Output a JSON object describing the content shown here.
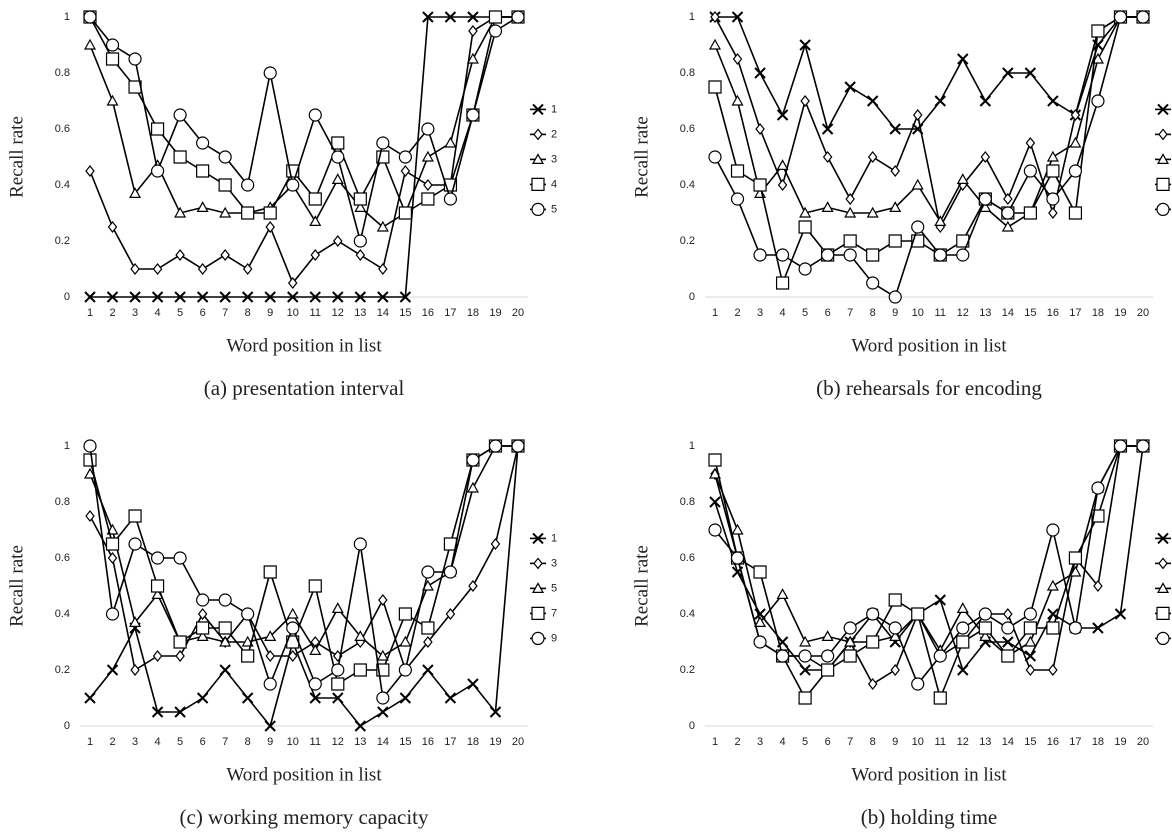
{
  "chart_data": [
    {
      "type": "line",
      "title": "(a) presentation interval",
      "xlabel": "Word position in list",
      "ylabel": "Recall rate",
      "x": [
        1,
        2,
        3,
        4,
        5,
        6,
        7,
        8,
        9,
        10,
        11,
        12,
        13,
        14,
        15,
        16,
        17,
        18,
        19,
        20
      ],
      "ylim": [
        0,
        1
      ],
      "yticks": [
        0,
        0.2,
        0.4,
        0.6,
        0.8,
        1
      ],
      "series": [
        {
          "name": "1",
          "marker": "x",
          "color": "#000000",
          "values": [
            0,
            0,
            0,
            0,
            0,
            0,
            0,
            0,
            0,
            0,
            0,
            0,
            0,
            0,
            0,
            1,
            1,
            1,
            1,
            1
          ]
        },
        {
          "name": "2",
          "marker": "diamond",
          "color": "#000000",
          "values": [
            0.45,
            0.25,
            0.1,
            0.1,
            0.15,
            0.1,
            0.15,
            0.1,
            0.25,
            0.05,
            0.15,
            0.2,
            0.15,
            0.1,
            0.45,
            0.4,
            0.4,
            0.95,
            1,
            1
          ]
        },
        {
          "name": "3",
          "marker": "triangle",
          "color": "#000000",
          "values": [
            0.9,
            0.7,
            0.37,
            0.47,
            0.3,
            0.32,
            0.3,
            0.3,
            0.32,
            0.4,
            0.27,
            0.42,
            0.32,
            0.25,
            0.3,
            0.5,
            0.55,
            0.85,
            1,
            1
          ]
        },
        {
          "name": "4",
          "marker": "square",
          "color": "#000000",
          "values": [
            1,
            0.85,
            0.75,
            0.6,
            0.5,
            0.45,
            0.4,
            0.3,
            0.3,
            0.45,
            0.35,
            0.55,
            0.35,
            0.5,
            0.3,
            0.35,
            0.4,
            0.65,
            1,
            1
          ]
        },
        {
          "name": "5",
          "marker": "circle",
          "color": "#000000",
          "values": [
            1,
            0.9,
            0.85,
            0.45,
            0.65,
            0.55,
            0.5,
            0.4,
            0.8,
            0.4,
            0.65,
            0.5,
            0.2,
            0.55,
            0.5,
            0.6,
            0.35,
            0.65,
            0.95,
            1
          ]
        }
      ]
    },
    {
      "type": "line",
      "title": "(b) rehearsals for encoding",
      "xlabel": "Word position in list",
      "ylabel": "Recall rate",
      "x": [
        1,
        2,
        3,
        4,
        5,
        6,
        7,
        8,
        9,
        10,
        11,
        12,
        13,
        14,
        15,
        16,
        17,
        18,
        19,
        20
      ],
      "ylim": [
        0,
        1
      ],
      "yticks": [
        0,
        0.2,
        0.4,
        0.6,
        0.8,
        1
      ],
      "series": [
        {
          "marker": "x",
          "color": "#000000",
          "values": [
            1,
            1,
            0.8,
            0.65,
            0.9,
            0.6,
            0.75,
            0.7,
            0.6,
            0.6,
            0.7,
            0.85,
            0.7,
            0.8,
            0.8,
            0.7,
            0.65,
            0.9,
            1,
            1
          ]
        },
        {
          "marker": "diamond",
          "color": "#000000",
          "values": [
            1,
            0.85,
            0.6,
            0.4,
            0.7,
            0.5,
            0.35,
            0.5,
            0.45,
            0.65,
            0.25,
            0.4,
            0.5,
            0.35,
            0.55,
            0.3,
            0.65,
            0.95,
            1,
            1
          ]
        },
        {
          "marker": "triangle",
          "color": "#000000",
          "values": [
            0.9,
            0.7,
            0.37,
            0.47,
            0.3,
            0.32,
            0.3,
            0.3,
            0.32,
            0.4,
            0.27,
            0.42,
            0.32,
            0.25,
            0.3,
            0.5,
            0.55,
            0.85,
            1,
            1
          ]
        },
        {
          "marker": "square",
          "color": "#000000",
          "values": [
            0.75,
            0.45,
            0.4,
            0.05,
            0.25,
            0.15,
            0.2,
            0.15,
            0.2,
            0.2,
            0.15,
            0.2,
            0.35,
            0.3,
            0.3,
            0.45,
            0.3,
            0.95,
            1,
            1
          ]
        },
        {
          "marker": "circle",
          "color": "#000000",
          "values": [
            0.5,
            0.35,
            0.15,
            0.15,
            0.1,
            0.15,
            0.15,
            0.05,
            0,
            0.25,
            0.15,
            0.15,
            0.35,
            0.3,
            0.45,
            0.35,
            0.45,
            0.7,
            1,
            1
          ]
        }
      ]
    },
    {
      "type": "line",
      "title": "(c) working memory capacity",
      "xlabel": "Word position in list",
      "ylabel": "Recall rate",
      "x": [
        1,
        2,
        3,
        4,
        5,
        6,
        7,
        8,
        9,
        10,
        11,
        12,
        13,
        14,
        15,
        16,
        17,
        18,
        19,
        20
      ],
      "ylim": [
        0,
        1
      ],
      "yticks": [
        0,
        0.2,
        0.4,
        0.6,
        0.8,
        1
      ],
      "series": [
        {
          "name": "1",
          "marker": "x",
          "color": "#000000",
          "values": [
            0.1,
            0.2,
            0.35,
            0.05,
            0.05,
            0.1,
            0.2,
            0.1,
            0,
            0.3,
            0.1,
            0.1,
            0,
            0.05,
            0.1,
            0.2,
            0.1,
            0.15,
            0.05,
            1
          ]
        },
        {
          "name": "3",
          "marker": "diamond",
          "color": "#000000",
          "values": [
            0.75,
            0.6,
            0.2,
            0.25,
            0.25,
            0.4,
            0.3,
            0.4,
            0.25,
            0.25,
            0.3,
            0.25,
            0.3,
            0.45,
            0.2,
            0.3,
            0.4,
            0.5,
            0.65,
            1
          ]
        },
        {
          "name": "5",
          "marker": "triangle",
          "color": "#000000",
          "values": [
            0.9,
            0.7,
            0.37,
            0.47,
            0.3,
            0.32,
            0.3,
            0.3,
            0.32,
            0.4,
            0.27,
            0.42,
            0.32,
            0.25,
            0.3,
            0.5,
            0.55,
            0.85,
            1,
            1
          ]
        },
        {
          "name": "7",
          "marker": "square",
          "color": "#000000",
          "values": [
            0.95,
            0.65,
            0.75,
            0.5,
            0.3,
            0.35,
            0.35,
            0.25,
            0.55,
            0.3,
            0.5,
            0.15,
            0.2,
            0.2,
            0.4,
            0.35,
            0.65,
            0.95,
            1,
            1
          ]
        },
        {
          "name": "9",
          "marker": "circle",
          "color": "#000000",
          "values": [
            1,
            0.4,
            0.65,
            0.6,
            0.6,
            0.45,
            0.45,
            0.4,
            0.15,
            0.35,
            0.15,
            0.2,
            0.65,
            0.1,
            0.2,
            0.55,
            0.55,
            0.95,
            1,
            1
          ]
        }
      ]
    },
    {
      "type": "line",
      "title": "(b) holding time",
      "xlabel": "Word position in list",
      "ylabel": "Recall rate",
      "x": [
        1,
        2,
        3,
        4,
        5,
        6,
        7,
        8,
        9,
        10,
        11,
        12,
        13,
        14,
        15,
        16,
        17,
        18,
        19,
        20
      ],
      "ylim": [
        0,
        1
      ],
      "yticks": [
        0,
        0.2,
        0.4,
        0.6,
        0.8,
        1
      ],
      "series": [
        {
          "marker": "x",
          "color": "#000000",
          "values": [
            0.8,
            0.55,
            0.4,
            0.3,
            0.2,
            0.2,
            0.3,
            0.4,
            0.3,
            0.4,
            0.45,
            0.2,
            0.3,
            0.3,
            0.25,
            0.4,
            0.35,
            0.35,
            0.4,
            1
          ]
        },
        {
          "marker": "diamond",
          "color": "#000000",
          "values": [
            0.9,
            0.6,
            0.3,
            0.25,
            0.25,
            0.2,
            0.3,
            0.15,
            0.2,
            0.4,
            0.25,
            0.3,
            0.4,
            0.4,
            0.2,
            0.2,
            0.6,
            0.5,
            1,
            1
          ]
        },
        {
          "marker": "triangle",
          "color": "#000000",
          "values": [
            0.9,
            0.7,
            0.37,
            0.47,
            0.3,
            0.32,
            0.3,
            0.3,
            0.32,
            0.4,
            0.27,
            0.42,
            0.32,
            0.25,
            0.3,
            0.5,
            0.55,
            0.85,
            1,
            1
          ]
        },
        {
          "marker": "square",
          "color": "#000000",
          "values": [
            0.95,
            0.6,
            0.55,
            0.25,
            0.1,
            0.2,
            0.25,
            0.3,
            0.45,
            0.4,
            0.1,
            0.3,
            0.35,
            0.25,
            0.35,
            0.35,
            0.6,
            0.75,
            1,
            1
          ]
        },
        {
          "marker": "circle",
          "color": "#000000",
          "values": [
            0.7,
            0.6,
            0.3,
            0.25,
            0.25,
            0.25,
            0.35,
            0.4,
            0.35,
            0.15,
            0.25,
            0.35,
            0.4,
            0.35,
            0.4,
            0.7,
            0.35,
            0.85,
            1,
            1
          ]
        }
      ]
    }
  ]
}
